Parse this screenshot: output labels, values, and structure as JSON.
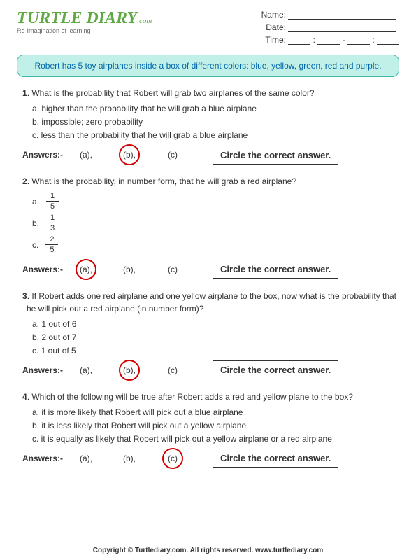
{
  "logo": {
    "main": "TURTLE DIARY",
    "sub": ".com",
    "tag": "Re-Imagination of learning"
  },
  "meta": {
    "name_label": "Name:",
    "date_label": "Date:",
    "time_label": "Time:"
  },
  "scenario": "Robert has 5 toy airplanes inside a box of different colors: blue, yellow, green, red and purple.",
  "answers_label": "Answers:-",
  "instruction": "Circle the correct answer.",
  "choices": {
    "a": "(a),",
    "b": "(b),",
    "c": "(c)"
  },
  "questions": [
    {
      "num": "1",
      "text": "What is the probability that Robert will grab two airplanes of the same color?",
      "opts": [
        "a. higher than the probability that he will grab a blue airplane",
        "b. impossible; zero probability",
        "c. less than the probability that he will grab a blue airplane"
      ],
      "correct": "b"
    },
    {
      "num": "2",
      "text": "What is the probability, in number form, that he will grab a red airplane?",
      "fracs": [
        {
          "letter": "a.",
          "n": "1",
          "d": "5"
        },
        {
          "letter": "b.",
          "n": "1",
          "d": "3"
        },
        {
          "letter": "c.",
          "n": "2",
          "d": "5"
        }
      ],
      "correct": "a"
    },
    {
      "num": "3",
      "text": "If Robert adds one red airplane and one yellow airplane to the box, now what is the probability that he will pick out a red airplane (in number form)?",
      "opts": [
        "a. 1 out of 6",
        "b. 2 out of 7",
        "c. 1 out of 5"
      ],
      "correct": "b"
    },
    {
      "num": "4",
      "text": "Which of the following will be true after Robert adds a red and yellow plane to the box?",
      "opts": [
        "a. it is more likely that Robert will pick out a blue airplane",
        "b. it is less likely that Robert will pick out a yellow airplane",
        "c. it is equally as likely that Robert will pick out a yellow airplane or a red airplane"
      ],
      "correct": "c"
    }
  ],
  "footer": "Copyright © Turtlediary.com. All rights reserved. www.turtlediary.com"
}
